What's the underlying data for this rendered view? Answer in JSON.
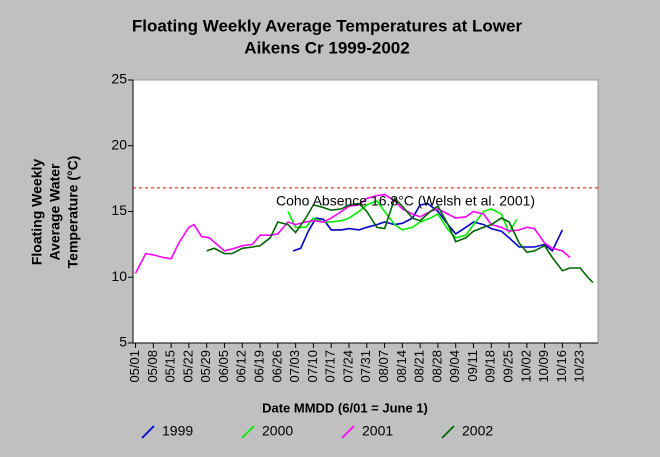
{
  "chart_data": {
    "type": "line",
    "title": [
      "Floating Weekly Average Temperatures at Lower",
      "Aikens Cr 1999-2002"
    ],
    "ylabel": [
      "Floating Weekly",
      "Average Water",
      "Temperature (°C)"
    ],
    "xlabel": "Date MMDD (6/01 = June 1)",
    "ylim": [
      5,
      25
    ],
    "yticks": [
      5,
      10,
      15,
      20,
      25
    ],
    "xlim": [
      "04/30",
      "10/30"
    ],
    "xticks": [
      "05/01",
      "05/08",
      "05/15",
      "05/22",
      "05/29",
      "06/05",
      "06/12",
      "06/19",
      "06/26",
      "07/03",
      "07/10",
      "07/17",
      "07/24",
      "07/31",
      "08/07",
      "08/14",
      "08/21",
      "08/28",
      "09/04",
      "09/11",
      "09/18",
      "09/25",
      "10/02",
      "10/09",
      "10/16",
      "10/23"
    ],
    "reference_line": {
      "value": 16.8,
      "label": "Coho Absence 16.8°C (Welsh et al. 2001)",
      "color": "#ff0000"
    },
    "legend": "bottom",
    "series": [
      {
        "name": "1999",
        "color": "#0000cc",
        "x": [
          "07/02",
          "07/05",
          "07/08",
          "07/11",
          "07/14",
          "07/17",
          "07/21",
          "07/24",
          "07/28",
          "07/31",
          "08/04",
          "08/07",
          "08/11",
          "08/14",
          "08/18",
          "08/21",
          "08/24",
          "08/28",
          "09/01",
          "09/04",
          "09/08",
          "09/11",
          "09/15",
          "09/18",
          "09/22",
          "09/25",
          "09/29",
          "10/02",
          "10/05",
          "10/09",
          "10/12",
          "10/16"
        ],
        "values": [
          12.0,
          12.2,
          13.5,
          14.5,
          14.4,
          13.6,
          13.6,
          13.7,
          13.6,
          13.8,
          14.0,
          14.2,
          14.0,
          14.1,
          14.5,
          15.5,
          15.6,
          15.0,
          14.0,
          13.3,
          13.8,
          14.2,
          14.0,
          13.7,
          13.5,
          13.0,
          12.3,
          12.3,
          12.3,
          12.5,
          12.0,
          13.6
        ]
      },
      {
        "name": "2000",
        "color": "#00ee00",
        "x": [
          "06/30",
          "07/03",
          "07/07",
          "07/10",
          "07/14",
          "07/17",
          "07/21",
          "07/24",
          "07/28",
          "07/31",
          "08/04",
          "08/07",
          "08/11",
          "08/14",
          "08/18",
          "08/21",
          "08/25",
          "08/28",
          "09/01",
          "09/04",
          "09/08",
          "09/11",
          "09/15",
          "09/18",
          "09/22",
          "09/25",
          "09/28"
        ],
        "values": [
          15.0,
          13.8,
          13.8,
          14.5,
          14.2,
          14.2,
          14.3,
          14.5,
          15.0,
          15.5,
          15.8,
          15.0,
          14.0,
          13.6,
          13.8,
          14.2,
          14.5,
          14.8,
          13.6,
          13.0,
          13.2,
          14.0,
          15.0,
          15.2,
          14.8,
          13.4,
          14.4
        ]
      },
      {
        "name": "2001",
        "color": "#ff00ff",
        "x": [
          "05/01",
          "05/05",
          "05/08",
          "05/12",
          "05/15",
          "05/18",
          "05/22",
          "05/24",
          "05/27",
          "05/30",
          "06/02",
          "06/05",
          "06/09",
          "06/12",
          "06/16",
          "06/19",
          "06/23",
          "06/26",
          "06/30",
          "07/03",
          "07/07",
          "07/10",
          "07/14",
          "07/17",
          "07/21",
          "07/24",
          "07/28",
          "07/31",
          "08/04",
          "08/07",
          "08/11",
          "08/14",
          "08/18",
          "08/21",
          "08/25",
          "08/28",
          "09/01",
          "09/04",
          "09/08",
          "09/11",
          "09/15",
          "09/18",
          "09/22",
          "09/25",
          "09/29",
          "10/02",
          "10/05",
          "10/09",
          "10/12",
          "10/16",
          "10/19"
        ],
        "values": [
          10.3,
          11.8,
          11.7,
          11.5,
          11.4,
          12.6,
          13.8,
          14.0,
          13.1,
          13.0,
          12.5,
          12.0,
          12.2,
          12.4,
          12.5,
          13.2,
          13.2,
          13.3,
          14.2,
          14.0,
          14.2,
          14.3,
          14.2,
          14.5,
          15.0,
          15.4,
          15.5,
          16.0,
          16.2,
          16.3,
          15.8,
          15.2,
          14.8,
          14.6,
          15.0,
          15.2,
          14.8,
          14.5,
          14.6,
          15.0,
          14.8,
          14.0,
          13.8,
          13.5,
          13.6,
          13.8,
          13.7,
          12.6,
          12.2,
          12.0,
          11.5
        ]
      },
      {
        "name": "2002",
        "color": "#006600",
        "x": [
          "05/29",
          "06/01",
          "06/05",
          "06/08",
          "06/12",
          "06/16",
          "06/19",
          "06/23",
          "06/26",
          "06/30",
          "07/03",
          "07/07",
          "07/10",
          "07/14",
          "07/17",
          "07/21",
          "07/24",
          "07/28",
          "07/31",
          "08/04",
          "08/07",
          "08/11",
          "08/14",
          "08/18",
          "08/21",
          "08/25",
          "08/28",
          "09/01",
          "09/04",
          "09/08",
          "09/11",
          "09/15",
          "09/18",
          "09/22",
          "09/25",
          "09/29",
          "10/02",
          "10/05",
          "10/09",
          "10/12",
          "10/16",
          "10/19",
          "10/23",
          "10/26",
          "10/28"
        ],
        "values": [
          12.0,
          12.2,
          11.8,
          11.8,
          12.2,
          12.3,
          12.4,
          13.0,
          14.2,
          14.0,
          13.4,
          14.5,
          15.5,
          15.3,
          15.1,
          15.2,
          15.5,
          15.6,
          15.0,
          13.8,
          13.7,
          16.0,
          15.4,
          14.5,
          14.3,
          15.0,
          15.4,
          14.0,
          12.7,
          13.0,
          13.5,
          13.8,
          14.0,
          14.5,
          14.2,
          12.6,
          11.9,
          12.0,
          12.4,
          11.5,
          10.5,
          10.7,
          10.7,
          10.0,
          9.6
        ]
      }
    ]
  }
}
